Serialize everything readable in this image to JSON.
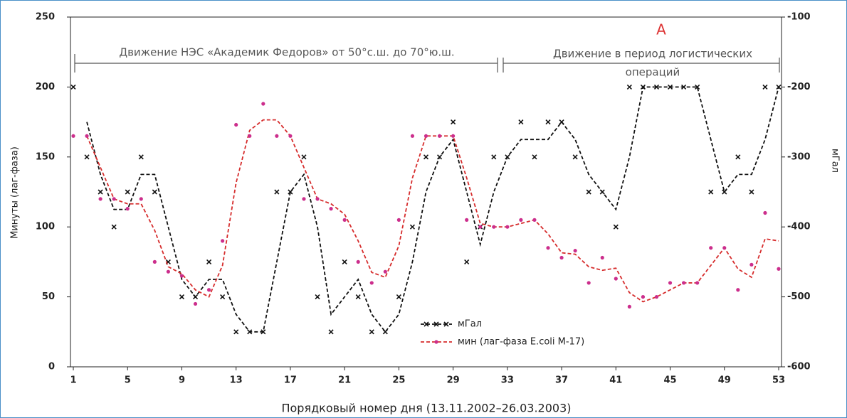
{
  "chart_data": {
    "type": "scatter",
    "x": [
      1,
      2,
      3,
      4,
      5,
      6,
      7,
      8,
      9,
      10,
      11,
      12,
      13,
      14,
      15,
      16,
      17,
      18,
      19,
      20,
      21,
      22,
      23,
      24,
      25,
      26,
      27,
      28,
      29,
      30,
      31,
      32,
      33,
      34,
      35,
      36,
      37,
      38,
      39,
      40,
      41,
      42,
      43,
      44,
      45,
      46,
      47,
      48,
      49,
      50,
      51,
      52,
      53
    ],
    "series": [
      {
        "name": "мГал",
        "color": "#111111",
        "marker": "x",
        "axis": "y2",
        "values": [
          -200,
          -300,
          -350,
          -400,
          -350,
          -300,
          -350,
          -450,
          -500,
          -500,
          -450,
          -500,
          -550,
          -550,
          -550,
          -350,
          -350,
          -300,
          -500,
          -550,
          -450,
          -500,
          -550,
          -550,
          -500,
          -400,
          -300,
          -300,
          -250,
          -450,
          -400,
          -300,
          -300,
          -250,
          -300,
          -250,
          -250,
          -300,
          -350,
          -350,
          -400,
          -200,
          -200,
          -200,
          -200,
          -200,
          -200,
          -350,
          -350,
          -300,
          -350,
          -200,
          -200
        ]
      },
      {
        "name": "мин (лаг-фаза E.coli M-17)",
        "color": "#cc2e8c",
        "line_color": "#d62c2c",
        "marker": "dot",
        "axis": "y",
        "values": [
          165,
          165,
          120,
          120,
          113,
          120,
          75,
          68,
          65,
          45,
          55,
          90,
          173,
          165,
          188,
          165,
          165,
          120,
          120,
          113,
          105,
          75,
          60,
          68,
          105,
          165,
          165,
          165,
          165,
          105,
          100,
          100,
          100,
          105,
          105,
          85,
          78,
          83,
          60,
          78,
          63,
          43,
          50,
          50,
          60,
          60,
          60,
          85,
          85,
          55,
          73,
          110,
          70
        ]
      }
    ],
    "trendline": {
      "type": "moving_average",
      "period": 2,
      "dashed": true
    },
    "xlim": [
      1,
      53
    ],
    "xticks": [
      1,
      5,
      9,
      13,
      17,
      21,
      25,
      29,
      33,
      37,
      41,
      45,
      49,
      53
    ],
    "ylim": [
      0,
      250
    ],
    "yticks": [
      0,
      50,
      100,
      150,
      200,
      250
    ],
    "y2lim": [
      -600,
      -100
    ],
    "y2ticks": [
      -600,
      -500,
      -400,
      -300,
      -200,
      -100
    ],
    "xlabel": "Порядковый номер дня (13.11.2002–26.03.2003)",
    "ylabel": "Минуты (лаг-фаза)",
    "y2label": "мГал",
    "annotations": [
      "А",
      "Движение НЭС «Академик Федоров»  от 50°с.ш. до 70°ю.ш.",
      "Движение в период логистических",
      "операций"
    ],
    "legend": "lower center"
  }
}
